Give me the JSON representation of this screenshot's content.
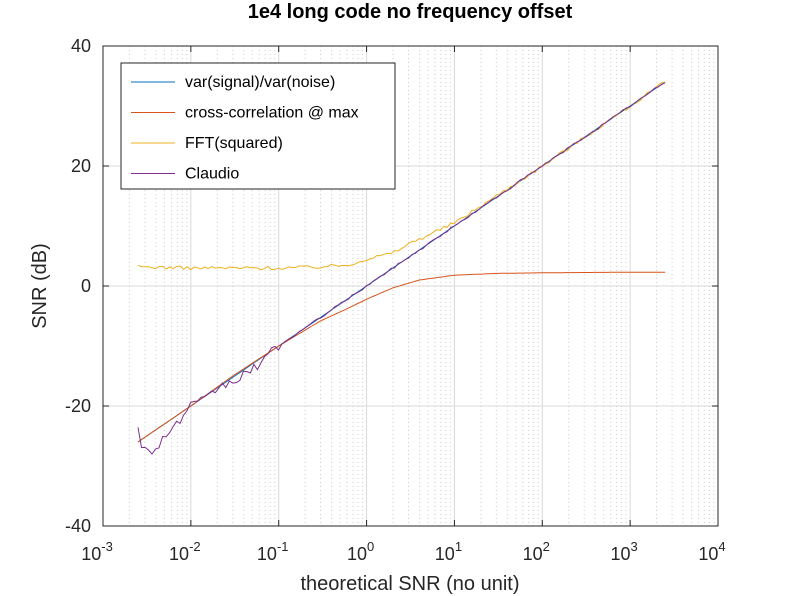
{
  "chart_data": {
    "type": "line",
    "title": "1e4 long code no frequency offset",
    "xlabel": "theoretical SNR (no unit)",
    "ylabel": "SNR (dB)",
    "x_scale": "log",
    "xlim": [
      0.001,
      10000
    ],
    "ylim": [
      -40,
      40
    ],
    "x_tick_labels": [
      {
        "base": "10",
        "exp": "-3"
      },
      {
        "base": "10",
        "exp": "-2"
      },
      {
        "base": "10",
        "exp": "-1"
      },
      {
        "base": "10",
        "exp": "0"
      },
      {
        "base": "10",
        "exp": "1"
      },
      {
        "base": "10",
        "exp": "2"
      },
      {
        "base": "10",
        "exp": "3"
      },
      {
        "base": "10",
        "exp": "4"
      }
    ],
    "y_tick_labels": [
      "-40",
      "-20",
      "0",
      "20",
      "40"
    ],
    "grid": true,
    "minor_grid": true,
    "legend_position": "top-left",
    "series": [
      {
        "name": "var(signal)/var(noise)",
        "color": "#0072bd",
        "style": "smooth",
        "x": [
          0.0025,
          0.01,
          0.1,
          1,
          10,
          100,
          1000,
          2500
        ],
        "y": [
          -26,
          -20,
          -10,
          0,
          10,
          20,
          30,
          34
        ]
      },
      {
        "name": "cross-correlation @ max",
        "color": "#d95319",
        "style": "smooth",
        "x": [
          0.0025,
          0.01,
          0.03,
          0.1,
          0.3,
          0.6,
          1,
          2,
          4,
          10,
          30,
          100,
          1000,
          2500
        ],
        "y": [
          -26,
          -20,
          -15,
          -10,
          -5.8,
          -3.8,
          -2.2,
          -0.3,
          1.0,
          1.8,
          2.1,
          2.2,
          2.3,
          2.3
        ]
      },
      {
        "name": "FFT(squared)",
        "color": "#edb120",
        "style": "noisy",
        "x": [
          0.0025,
          0.01,
          0.03,
          0.1,
          0.3,
          0.6,
          1,
          2,
          3,
          5,
          10,
          30,
          100,
          1000,
          2500
        ],
        "y": [
          3.2,
          3.0,
          3.0,
          3.0,
          3.2,
          3.5,
          4.5,
          5.5,
          7.0,
          8.5,
          10.5,
          15.0,
          20.0,
          30.0,
          34.0
        ]
      },
      {
        "name": "Claudio",
        "color": "#7e2f8e",
        "style": "noisy-low",
        "x": [
          0.0025,
          0.0028,
          0.0035,
          0.005,
          0.007,
          0.01,
          0.015,
          0.02,
          0.03,
          0.05,
          0.1,
          1,
          10,
          100,
          1000,
          2500
        ],
        "y": [
          -23,
          -27,
          -28,
          -25,
          -23,
          -20,
          -19,
          -17,
          -16,
          -14,
          -10,
          0,
          10,
          20,
          30,
          34
        ]
      }
    ]
  }
}
